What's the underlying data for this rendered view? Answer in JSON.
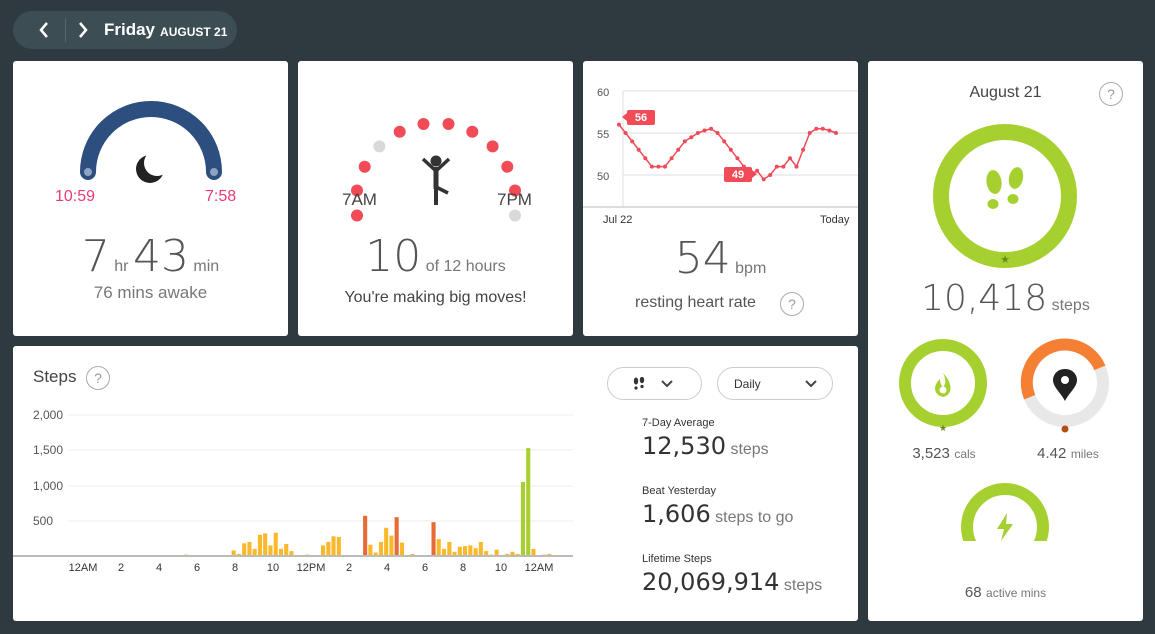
{
  "header": {
    "day": "Friday",
    "month_date": "AUGUST 21"
  },
  "sleep": {
    "start": "10:59",
    "end": "7:58",
    "hours": "7",
    "hr_unit": "hr",
    "minutes": "43",
    "min_unit": "min",
    "awake": "76 mins awake"
  },
  "hourly": {
    "start": "7AM",
    "end": "7PM",
    "count": "10",
    "of_label": "of 12 hours",
    "message": "You're making big moves!",
    "hours_met": [
      true,
      true,
      true,
      false,
      true,
      true,
      true,
      true,
      true,
      true,
      true,
      false
    ]
  },
  "heart": {
    "y_ticks": [
      "60",
      "55",
      "50"
    ],
    "x_start": "Jul 22",
    "x_end": "Today",
    "label_high": "56",
    "label_low": "49",
    "value": "54",
    "unit": "bpm",
    "caption": "resting heart rate",
    "help": "?"
  },
  "steps_chart": {
    "title": "Steps",
    "help": "?",
    "y_ticks": [
      "2,000",
      "1,500",
      "1,000",
      "500"
    ],
    "x_ticks": [
      "12AM",
      "2",
      "4",
      "6",
      "8",
      "10",
      "12PM",
      "2",
      "4",
      "6",
      "8",
      "10",
      "12AM"
    ],
    "period": "Daily",
    "stats": [
      {
        "label": "7-Day Average",
        "value": "12,530",
        "unit": "steps"
      },
      {
        "label": "Beat Yesterday",
        "value": "1,606",
        "unit": "steps to go"
      },
      {
        "label": "Lifetime Steps",
        "value": "20,069,914",
        "unit": "steps"
      }
    ]
  },
  "chart_data": {
    "type": "bar",
    "title": "Steps",
    "xlabel": "",
    "ylabel": "",
    "ylim": [
      0,
      2000
    ],
    "interval_minutes": 15,
    "start_index": 22,
    "values": [
      20,
      0,
      0,
      0,
      0,
      0,
      0,
      0,
      0,
      80,
      30,
      180,
      200,
      100,
      300,
      320,
      150,
      330,
      100,
      170,
      70,
      10,
      10,
      20,
      0,
      0,
      150,
      200,
      280,
      270,
      10,
      10,
      0,
      0,
      570,
      160,
      50,
      200,
      400,
      290,
      550,
      190,
      10,
      30,
      0,
      0,
      0,
      480,
      240,
      100,
      200,
      60,
      130,
      140,
      150,
      110,
      200,
      70,
      20,
      90,
      0,
      30,
      60,
      30,
      1050,
      1530,
      100,
      10,
      20,
      30
    ],
    "colors": {
      "low": "#f9b92b",
      "mid": "#f5892a",
      "high": "#e86a35",
      "goal": "#a6d02f"
    }
  },
  "summary": {
    "date": "August 21",
    "help": "?",
    "steps": "10,418",
    "steps_unit": "steps",
    "cals": "3,523",
    "cals_unit": "cals",
    "miles": "4.42",
    "miles_unit": "miles",
    "active": "68",
    "active_unit": "active mins"
  },
  "colors": {
    "green": "#a6d02f",
    "orange": "#f58033",
    "red": "#f04b57",
    "sleep_blue": "#2c4f7f",
    "pink": "#ea3a76"
  }
}
